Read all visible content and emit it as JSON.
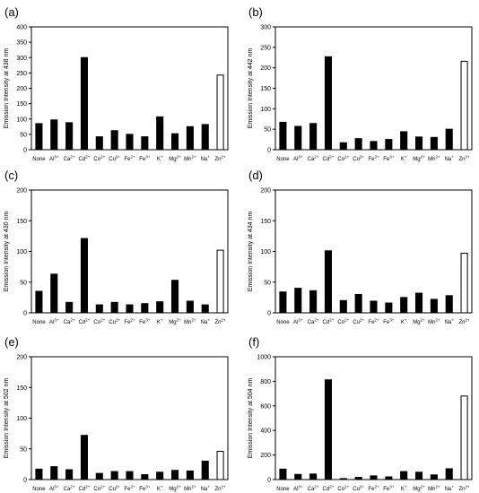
{
  "chart_data": [
    {
      "panel_label": "(a)",
      "type": "bar",
      "ylabel": "Emission Intensity at 438 nm",
      "ylim": [
        0,
        400
      ],
      "yticks": [
        0,
        50,
        100,
        150,
        200,
        250,
        300,
        350,
        400
      ],
      "categories": [
        "None",
        "Al3+",
        "Ca2+",
        "Cd2+",
        "Co2+",
        "Cu2+",
        "Fe2+",
        "Fe3+",
        "K+",
        "Mg2+",
        "Mn2+",
        "Na+",
        "Zn2+"
      ],
      "values": [
        85,
        97,
        88,
        300,
        42,
        62,
        50,
        42,
        107,
        52,
        75,
        82,
        243
      ],
      "highlight": "Zn2+"
    },
    {
      "panel_label": "(b)",
      "type": "bar",
      "ylabel": "Emission Intensity at 442 nm",
      "ylim": [
        0,
        300
      ],
      "yticks": [
        0,
        50,
        100,
        150,
        200,
        250,
        300
      ],
      "categories": [
        "None",
        "Al3+",
        "Ca2+",
        "Cd2+",
        "Co2+",
        "Cu2+",
        "Fe2+",
        "Fe3+",
        "K+",
        "Mg2+",
        "Mn2+",
        "Na+",
        "Zn2+"
      ],
      "values": [
        67,
        57,
        64,
        227,
        17,
        27,
        20,
        25,
        44,
        31,
        30,
        50,
        216
      ],
      "highlight": "Zn2+"
    },
    {
      "panel_label": "(c)",
      "type": "bar",
      "ylabel": "Emission Intensity at  430 nm",
      "ylim": [
        0,
        200
      ],
      "yticks": [
        0,
        50,
        100,
        150,
        200
      ],
      "categories": [
        "None",
        "Al3+",
        "Ca2+",
        "Cd2+",
        "Co2+",
        "Cu2+",
        "Fe2+",
        "Fe3+",
        "K+",
        "Mg2+",
        "Mn2+",
        "Na+",
        "Zn2+"
      ],
      "values": [
        35,
        63,
        17,
        121,
        13,
        17,
        13,
        15,
        18,
        53,
        19,
        13,
        102
      ],
      "highlight": "Zn2+"
    },
    {
      "panel_label": "(d)",
      "type": "bar",
      "ylabel": "Emission Intensity at 434 nm",
      "ylim": [
        0,
        200
      ],
      "yticks": [
        0,
        50,
        100,
        150,
        200
      ],
      "categories": [
        "None",
        "Al3+",
        "Ca2+",
        "Cd2+",
        "Co2+",
        "Cu2+",
        "Fe2+",
        "Fe3+",
        "K+",
        "Mg2+",
        "Mn2+",
        "Na+",
        "Zn2+"
      ],
      "values": [
        34,
        40,
        36,
        101,
        20,
        30,
        19,
        16,
        25,
        32,
        22,
        28,
        97
      ],
      "highlight": "Zn2+"
    },
    {
      "panel_label": "(e)",
      "type": "bar",
      "ylabel": "Emission Intensity at 502 nm",
      "ylim": [
        0,
        200
      ],
      "yticks": [
        0,
        50,
        100,
        150,
        200
      ],
      "categories": [
        "None",
        "Al3+",
        "Ca2+",
        "Cd2+",
        "Co2+",
        "Cu2+",
        "Fe2+",
        "Fe3+",
        "K+",
        "Mg2+",
        "Mn2+",
        "Na+",
        "Zn2+"
      ],
      "values": [
        17,
        21,
        16,
        72,
        10,
        13,
        13,
        8,
        12,
        15,
        14,
        30,
        46
      ],
      "highlight": "Zn2+"
    },
    {
      "panel_label": "(f)",
      "type": "bar",
      "ylabel": "Emission Intensity at 504 nm",
      "ylim": [
        0,
        1000
      ],
      "yticks": [
        0,
        200,
        400,
        600,
        800,
        1000
      ],
      "categories": [
        "None",
        "Al3+",
        "Ca2+",
        "Cd2+",
        "Co2+",
        "Cu2+",
        "Fe2+",
        "Fe3+",
        "K+",
        "Mg2+",
        "Mn2+",
        "Na+",
        "Zn2+"
      ],
      "values": [
        85,
        42,
        45,
        812,
        8,
        18,
        30,
        22,
        65,
        60,
        38,
        88,
        680
      ],
      "highlight": "Zn2+"
    }
  ]
}
